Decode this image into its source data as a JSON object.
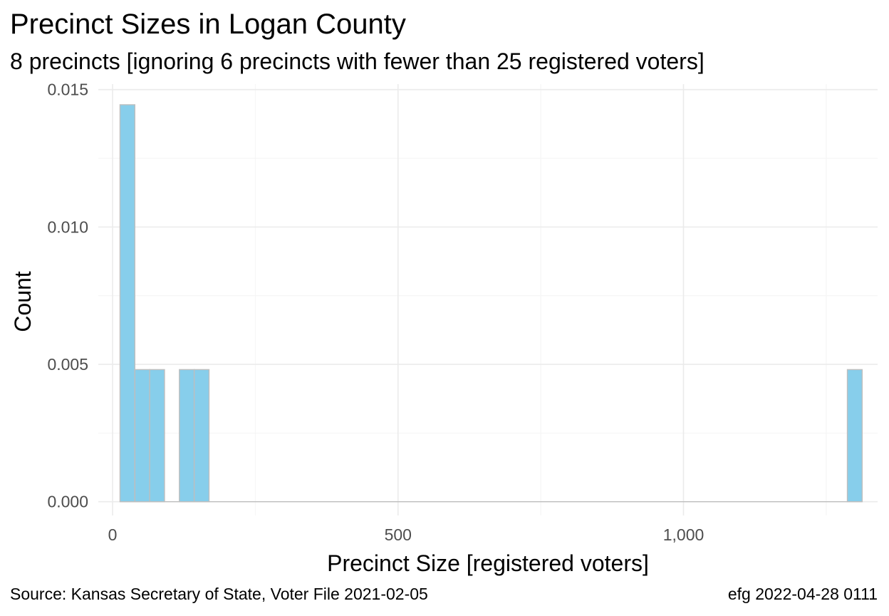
{
  "chart_data": {
    "type": "bar",
    "title": "Precinct Sizes in Logan County",
    "subtitle": "8 precincts [ignoring 6 precincts with fewer than 25 registered voters]",
    "xlabel": "Precinct Size [registered voters]",
    "ylabel": "Count",
    "xlim": [
      -25,
      1340
    ],
    "ylim": [
      -0.0005,
      0.0152
    ],
    "x_ticks": [
      0,
      500,
      1000
    ],
    "x_tick_labels": [
      "0",
      "500",
      "1,000"
    ],
    "y_ticks": [
      0.0,
      0.005,
      0.01,
      0.015
    ],
    "y_tick_labels": [
      "0.000",
      "0.005",
      "0.010",
      "0.015"
    ],
    "x_minor_ticks": [
      250,
      750,
      1250
    ],
    "y_minor_ticks": [
      0.0025,
      0.0075,
      0.0125
    ],
    "grid": true,
    "bin_width": 26,
    "bins": [
      {
        "x0": 13,
        "x1": 39,
        "value": 0.01445
      },
      {
        "x0": 39,
        "x1": 65,
        "value": 0.00481
      },
      {
        "x0": 65,
        "x1": 91,
        "value": 0.00481
      },
      {
        "x0": 117,
        "x1": 143,
        "value": 0.00481
      },
      {
        "x0": 143,
        "x1": 169,
        "value": 0.00481
      },
      {
        "x0": 1287,
        "x1": 1313,
        "value": 0.00481
      }
    ],
    "colors": {
      "bar_fill": "#87ceeb",
      "bar_outline": "#bebebe",
      "grid_major": "#ebebeb",
      "grid_minor": "#f5f5f5",
      "baseline": "#bebebe"
    }
  },
  "caption": {
    "left": "Source:  Kansas Secretary of State, Voter File  2021-02-05",
    "right": "efg 2022-04-28 0111"
  }
}
